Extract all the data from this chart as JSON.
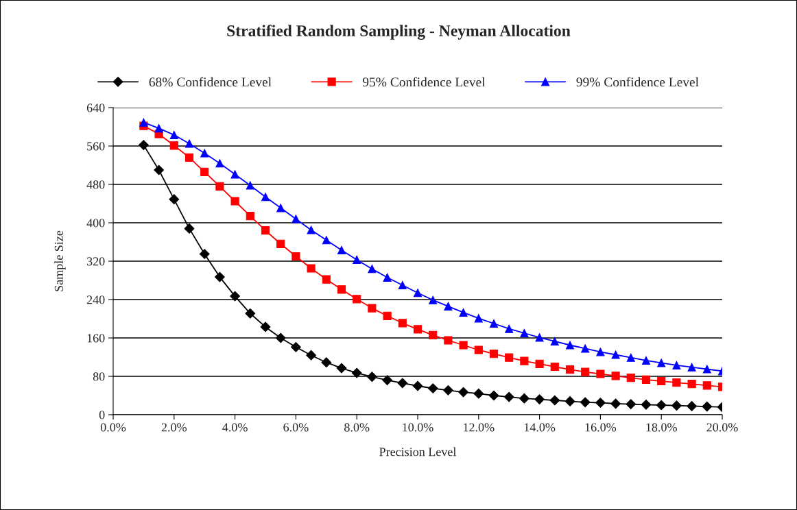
{
  "chart_data": {
    "type": "line",
    "title": "Stratified Random Sampling - Neyman Allocation",
    "xlabel": "Precision Level",
    "ylabel": "Sample Size",
    "x": [
      1.0,
      1.5,
      2.0,
      2.5,
      3.0,
      3.5,
      4.0,
      4.5,
      5.0,
      5.5,
      6.0,
      6.5,
      7.0,
      7.5,
      8.0,
      8.5,
      9.0,
      9.5,
      10.0,
      10.5,
      11.0,
      11.5,
      12.0,
      12.5,
      13.0,
      13.5,
      14.0,
      14.5,
      15.0,
      15.5,
      16.0,
      16.5,
      17.0,
      17.5,
      18.0,
      18.5,
      19.0,
      19.5,
      20.0
    ],
    "series": [
      {
        "name": "68% Confidence Level",
        "color": "#000000",
        "marker": "diamond",
        "values": [
          562,
          510,
          449,
          388,
          335,
          287,
          247,
          211,
          183,
          160,
          141,
          124,
          109,
          97,
          87,
          79,
          72,
          66,
          60,
          55,
          51,
          47,
          44,
          40,
          37,
          34,
          32,
          30,
          28,
          26,
          25,
          23,
          22,
          21,
          20,
          19,
          18,
          17,
          16
        ]
      },
      {
        "name": "95% Confidence Level",
        "color": "#ff0000",
        "marker": "square",
        "values": [
          602,
          585,
          561,
          536,
          506,
          476,
          445,
          414,
          384,
          356,
          330,
          305,
          282,
          261,
          241,
          222,
          206,
          191,
          178,
          166,
          155,
          145,
          135,
          127,
          119,
          112,
          106,
          100,
          94,
          89,
          85,
          81,
          77,
          73,
          70,
          67,
          64,
          61,
          58
        ]
      },
      {
        "name": "99% Confidence Level",
        "color": "#0000ff",
        "marker": "triangle",
        "values": [
          609,
          597,
          583,
          565,
          545,
          524,
          501,
          478,
          454,
          431,
          408,
          385,
          364,
          343,
          323,
          304,
          286,
          270,
          254,
          239,
          226,
          213,
          201,
          190,
          179,
          170,
          161,
          153,
          145,
          138,
          131,
          125,
          119,
          113,
          108,
          103,
          99,
          95,
          91
        ]
      }
    ],
    "xlim": [
      0,
      20
    ],
    "xticks": [
      {
        "value": 0,
        "label": "0.0%"
      },
      {
        "value": 2,
        "label": "2.0%"
      },
      {
        "value": 4,
        "label": "4.0%"
      },
      {
        "value": 6,
        "label": "6.0%"
      },
      {
        "value": 8,
        "label": "8.0%"
      },
      {
        "value": 10,
        "label": "10.0%"
      },
      {
        "value": 12,
        "label": "12.0%"
      },
      {
        "value": 14,
        "label": "14.0%"
      },
      {
        "value": 16,
        "label": "16.0%"
      },
      {
        "value": 18,
        "label": "18.0%"
      },
      {
        "value": 20,
        "label": "20.0%"
      }
    ],
    "ylim": [
      0,
      640
    ],
    "yticks": [
      0,
      80,
      160,
      240,
      320,
      400,
      480,
      560,
      640
    ],
    "grid": "y",
    "legend": "top",
    "line_style": "solid"
  }
}
